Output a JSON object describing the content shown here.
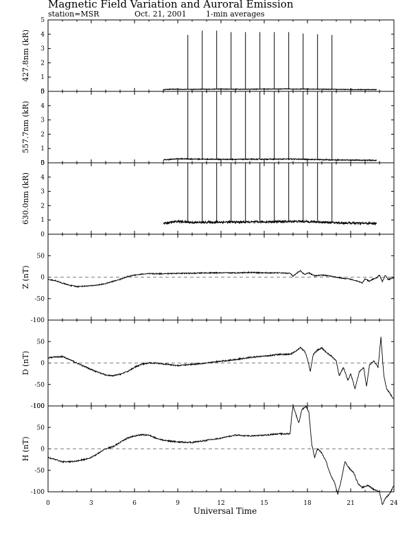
{
  "header": {
    "title": "Magnetic Field Variation and Auroral Emission",
    "station": "station=MSR",
    "date": "Oct. 21, 2001",
    "averaging": "1-min averages"
  },
  "chart_data": {
    "type": "line",
    "xlabel": "Universal Time",
    "xlim": [
      0,
      24
    ],
    "xticks": [
      "0",
      "3",
      "6",
      "9",
      "12",
      "15",
      "18",
      "21",
      "24"
    ],
    "spike_times": [
      9.7,
      10.7,
      11.7,
      12.7,
      13.7,
      14.7,
      15.7,
      16.7,
      17.7,
      18.7,
      19.7
    ],
    "panels": [
      {
        "id": "p4278",
        "ylabel": "427.8nm (kR)",
        "ylim": [
          0,
          5
        ],
        "yticks": [
          "0",
          "1",
          "2",
          "3",
          "4",
          "5"
        ],
        "zero_line": false,
        "range": [
          8.0,
          22.8
        ],
        "base": [
          [
            8.0,
            0.12
          ],
          [
            8.5,
            0.15
          ],
          [
            9.5,
            0.14
          ],
          [
            11.0,
            0.15
          ],
          [
            12.0,
            0.16
          ],
          [
            13.5,
            0.15
          ],
          [
            15.0,
            0.16
          ],
          [
            16.5,
            0.17
          ],
          [
            17.5,
            0.16
          ],
          [
            19.0,
            0.15
          ],
          [
            20.5,
            0.13
          ],
          [
            22.8,
            0.12
          ]
        ],
        "noise": 0.02,
        "spike_peaks": [
          3.95,
          4.25,
          4.25,
          4.15,
          4.15,
          4.15,
          4.15,
          4.15,
          4.05,
          4.0,
          3.95
        ]
      },
      {
        "id": "p5577",
        "ylabel": "557.7nm (kR)",
        "ylim": [
          0,
          5
        ],
        "yticks": [
          "0",
          "1",
          "2",
          "3",
          "4",
          "5"
        ],
        "zero_line": false,
        "range": [
          8.0,
          22.8
        ],
        "base": [
          [
            8.0,
            0.2
          ],
          [
            9.0,
            0.28
          ],
          [
            11.0,
            0.25
          ],
          [
            13.0,
            0.24
          ],
          [
            15.0,
            0.25
          ],
          [
            17.0,
            0.26
          ],
          [
            18.0,
            0.24
          ],
          [
            20.0,
            0.2
          ],
          [
            22.8,
            0.17
          ]
        ],
        "noise": 0.03,
        "spike_peaks": [
          5,
          5,
          5,
          5,
          5,
          5,
          5,
          5,
          5,
          5,
          5
        ]
      },
      {
        "id": "p6300",
        "ylabel": "630.0nm (kR)",
        "ylim": [
          0,
          5
        ],
        "yticks": [
          "0",
          "1",
          "2",
          "3",
          "4",
          "5"
        ],
        "zero_line": false,
        "range": [
          8.0,
          22.8
        ],
        "base": [
          [
            8.0,
            0.75
          ],
          [
            9.0,
            0.9
          ],
          [
            10.0,
            0.82
          ],
          [
            12.0,
            0.85
          ],
          [
            14.0,
            0.85
          ],
          [
            16.0,
            0.88
          ],
          [
            17.5,
            0.9
          ],
          [
            19.0,
            0.85
          ],
          [
            20.0,
            0.8
          ],
          [
            21.0,
            0.78
          ],
          [
            22.8,
            0.75
          ]
        ],
        "noise": 0.07,
        "spike_peaks": [
          5,
          5,
          5,
          5,
          5,
          5,
          5,
          5,
          5,
          5,
          5
        ]
      },
      {
        "id": "pZ",
        "ylabel": "Z (nT)",
        "ylim": [
          -100,
          100
        ],
        "yticks": [
          "-100",
          "-50",
          "0",
          "50",
          ""
        ],
        "zero_line": true,
        "range": [
          0,
          24
        ],
        "points": [
          [
            0,
            -5
          ],
          [
            0.5,
            -8
          ],
          [
            1.0,
            -14
          ],
          [
            1.5,
            -19
          ],
          [
            2.0,
            -22
          ],
          [
            2.5,
            -21
          ],
          [
            3.0,
            -20
          ],
          [
            3.5,
            -18
          ],
          [
            4.0,
            -15
          ],
          [
            4.5,
            -10
          ],
          [
            5.0,
            -5
          ],
          [
            5.5,
            1
          ],
          [
            6.0,
            5
          ],
          [
            6.5,
            7
          ],
          [
            7.0,
            8
          ],
          [
            8.0,
            8
          ],
          [
            9.0,
            9
          ],
          [
            10.0,
            9
          ],
          [
            11.0,
            10
          ],
          [
            12.0,
            10
          ],
          [
            13.0,
            10
          ],
          [
            14.0,
            11
          ],
          [
            15.0,
            10
          ],
          [
            16.0,
            10
          ],
          [
            16.8,
            9
          ],
          [
            17.0,
            2
          ],
          [
            17.3,
            10
          ],
          [
            17.5,
            15
          ],
          [
            17.8,
            6
          ],
          [
            18.1,
            10
          ],
          [
            18.5,
            3
          ],
          [
            19.0,
            5
          ],
          [
            19.5,
            3
          ],
          [
            20.0,
            0
          ],
          [
            20.5,
            -3
          ],
          [
            21.0,
            -5
          ],
          [
            21.5,
            -9
          ],
          [
            21.8,
            -14
          ],
          [
            22.0,
            -4
          ],
          [
            22.3,
            -10
          ],
          [
            22.5,
            -5
          ],
          [
            22.8,
            -2
          ],
          [
            23.0,
            5
          ],
          [
            23.2,
            -10
          ],
          [
            23.4,
            4
          ],
          [
            23.6,
            -5
          ],
          [
            24.0,
            -2
          ]
        ],
        "noise": 1.2
      },
      {
        "id": "pD",
        "ylabel": "D (nT)",
        "ylim": [
          -100,
          100
        ],
        "yticks": [
          "-100",
          "-50",
          "0",
          "50",
          ""
        ],
        "zero_line": true,
        "range": [
          0,
          24
        ],
        "points": [
          [
            0,
            12
          ],
          [
            0.5,
            14
          ],
          [
            1.0,
            15
          ],
          [
            1.5,
            8
          ],
          [
            2.0,
            0
          ],
          [
            2.5,
            -8
          ],
          [
            3.0,
            -15
          ],
          [
            3.5,
            -22
          ],
          [
            4.0,
            -28
          ],
          [
            4.5,
            -30
          ],
          [
            5.0,
            -26
          ],
          [
            5.5,
            -20
          ],
          [
            6.0,
            -10
          ],
          [
            6.5,
            -3
          ],
          [
            7.0,
            0
          ],
          [
            7.5,
            0
          ],
          [
            8.0,
            -2
          ],
          [
            8.5,
            -4
          ],
          [
            9.0,
            -6
          ],
          [
            10.0,
            -3
          ],
          [
            11.0,
            0
          ],
          [
            12.0,
            4
          ],
          [
            13.0,
            8
          ],
          [
            14.0,
            13
          ],
          [
            15.0,
            16
          ],
          [
            16.0,
            20
          ],
          [
            16.8,
            20
          ],
          [
            17.2,
            28
          ],
          [
            17.5,
            36
          ],
          [
            17.8,
            28
          ],
          [
            18.0,
            10
          ],
          [
            18.2,
            -20
          ],
          [
            18.4,
            20
          ],
          [
            18.7,
            30
          ],
          [
            19.0,
            35
          ],
          [
            19.3,
            25
          ],
          [
            19.7,
            15
          ],
          [
            20.0,
            5
          ],
          [
            20.2,
            -30
          ],
          [
            20.5,
            -10
          ],
          [
            20.8,
            -40
          ],
          [
            21.0,
            -25
          ],
          [
            21.3,
            -60
          ],
          [
            21.6,
            -20
          ],
          [
            21.9,
            -10
          ],
          [
            22.1,
            -55
          ],
          [
            22.3,
            -5
          ],
          [
            22.6,
            5
          ],
          [
            22.9,
            -10
          ],
          [
            23.1,
            60
          ],
          [
            23.3,
            -30
          ],
          [
            23.5,
            -60
          ],
          [
            23.8,
            -75
          ],
          [
            24.0,
            -85
          ]
        ],
        "noise": 1.5
      },
      {
        "id": "pH",
        "ylabel": "H (nT)",
        "ylim": [
          -100,
          100
        ],
        "yticks": [
          "-100",
          "-50",
          "0",
          "50",
          "100"
        ],
        "zero_line": true,
        "range": [
          0,
          24
        ],
        "points": [
          [
            0,
            -20
          ],
          [
            0.5,
            -25
          ],
          [
            1.0,
            -30
          ],
          [
            1.5,
            -30
          ],
          [
            2.0,
            -28
          ],
          [
            2.5,
            -25
          ],
          [
            3.0,
            -20
          ],
          [
            3.5,
            -10
          ],
          [
            4.0,
            0
          ],
          [
            4.5,
            5
          ],
          [
            5.0,
            15
          ],
          [
            5.5,
            25
          ],
          [
            6.0,
            30
          ],
          [
            6.5,
            33
          ],
          [
            7.0,
            32
          ],
          [
            7.5,
            25
          ],
          [
            8.0,
            20
          ],
          [
            8.5,
            18
          ],
          [
            9.0,
            16
          ],
          [
            10.0,
            15
          ],
          [
            11.0,
            20
          ],
          [
            12.0,
            25
          ],
          [
            13.0,
            32
          ],
          [
            14.0,
            30
          ],
          [
            15.0,
            32
          ],
          [
            16.0,
            35
          ],
          [
            16.8,
            35
          ],
          [
            16.9,
            75
          ],
          [
            17.0,
            100
          ],
          [
            17.2,
            80
          ],
          [
            17.4,
            60
          ],
          [
            17.6,
            90
          ],
          [
            17.9,
            100
          ],
          [
            18.1,
            85
          ],
          [
            18.3,
            10
          ],
          [
            18.5,
            -20
          ],
          [
            18.7,
            0
          ],
          [
            19.0,
            -10
          ],
          [
            19.3,
            -30
          ],
          [
            19.6,
            -60
          ],
          [
            19.9,
            -80
          ],
          [
            20.1,
            -105
          ],
          [
            20.3,
            -80
          ],
          [
            20.6,
            -30
          ],
          [
            20.9,
            -45
          ],
          [
            21.2,
            -55
          ],
          [
            21.5,
            -80
          ],
          [
            21.8,
            -90
          ],
          [
            22.2,
            -85
          ],
          [
            22.6,
            -95
          ],
          [
            23.0,
            -100
          ],
          [
            23.2,
            -130
          ],
          [
            23.4,
            -115
          ],
          [
            23.7,
            -105
          ],
          [
            24.0,
            -85
          ]
        ],
        "noise": 1.5
      }
    ]
  }
}
